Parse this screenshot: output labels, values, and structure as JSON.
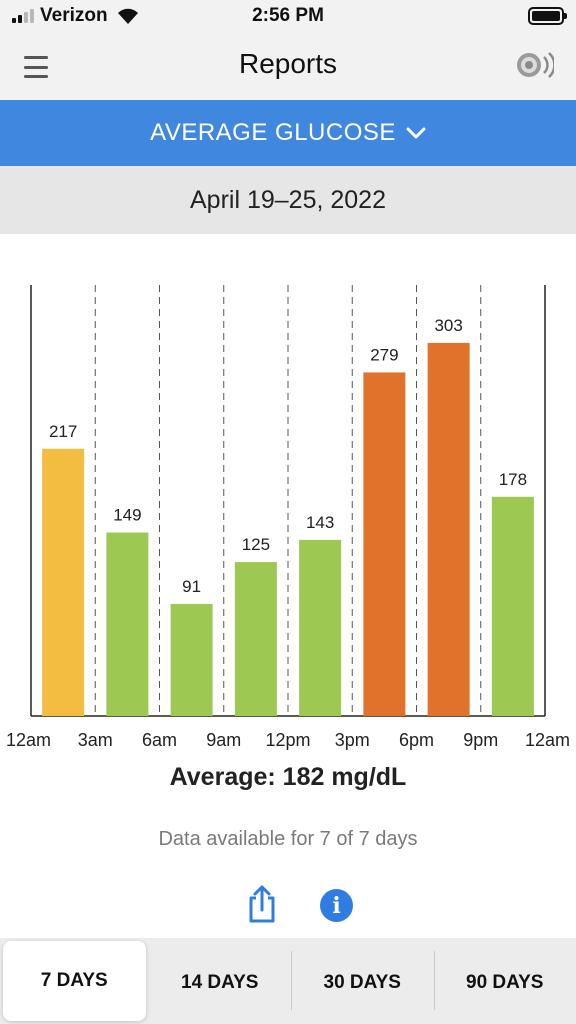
{
  "status_bar": {
    "carrier": "Verizon",
    "time": "2:56 PM",
    "signal_bars": 4,
    "signal_bars_active": 2
  },
  "nav": {
    "title": "Reports",
    "menu_icon": "hamburger-menu-icon",
    "sensor_icon": "sensor-icon"
  },
  "report_selector": {
    "label": "AVERAGE GLUCOSE",
    "icon": "chevron-down-icon"
  },
  "date_range": "April 19–25, 2022",
  "colors": {
    "header_blue": "#4087e0",
    "in_range_green": "#9dc852",
    "high_yellow": "#f2bd40",
    "very_high_orange": "#e0722b"
  },
  "chart_data": {
    "type": "bar",
    "title": "",
    "xlabel": "",
    "ylabel": "",
    "x_tick_labels": [
      "12am",
      "3am",
      "6am",
      "9am",
      "12pm",
      "3pm",
      "6pm",
      "9pm",
      "12am"
    ],
    "values": [
      217,
      149,
      91,
      125,
      143,
      279,
      303,
      178
    ],
    "bar_colors": [
      "#f2bd40",
      "#9dc852",
      "#9dc852",
      "#9dc852",
      "#9dc852",
      "#e0722b",
      "#e0722b",
      "#9dc852"
    ],
    "ylim": [
      0,
      350
    ],
    "grid": "dashed vertical lines at each 3-hour boundary",
    "legend": "none"
  },
  "average": "Average: 182 mg/dL",
  "availability": "Data available for 7 of 7 days",
  "actions": {
    "share_icon": "share-icon",
    "info_icon": "info-icon",
    "info_glyph": "i"
  },
  "segments": [
    {
      "label": "7 DAYS",
      "selected": true
    },
    {
      "label": "14 DAYS",
      "selected": false
    },
    {
      "label": "30 DAYS",
      "selected": false
    },
    {
      "label": "90 DAYS",
      "selected": false
    }
  ]
}
